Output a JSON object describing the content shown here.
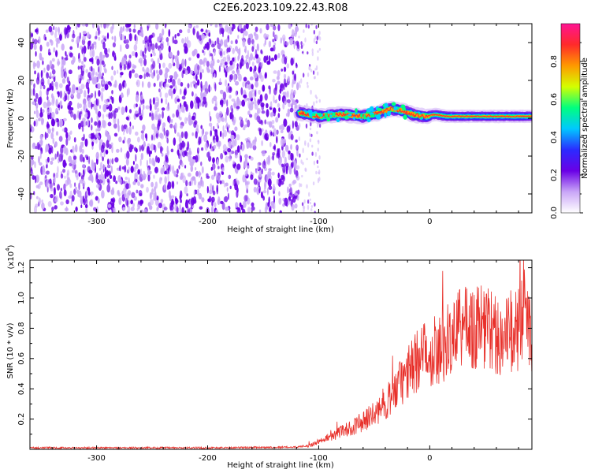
{
  "title": "C2E6.2023.109.22.43.R08",
  "colors": {
    "snr_line": "#e8302a",
    "spectro_dots": "#6a00e6",
    "axis": "#000000",
    "colormap": [
      "#ffffff",
      "#c9a6f7",
      "#6a00e6",
      "#2b2bff",
      "#00c8ff",
      "#00ff7f",
      "#d4ff00",
      "#ff9900",
      "#ff2a2a",
      "#ff1493"
    ]
  },
  "chart_data": [
    {
      "type": "heatmap",
      "name": "spectrogram",
      "title": "",
      "xlabel": "Height of straight line (km)",
      "ylabel": "Frequency (Hz)",
      "xlim": [
        -360,
        92
      ],
      "ylim": [
        -50,
        50
      ],
      "x_ticks": [
        -300,
        -200,
        -100,
        0
      ],
      "x_tick_labels": [
        "-300",
        "-200",
        "-100",
        "0"
      ],
      "y_ticks": [
        -40,
        -20,
        0,
        20,
        40
      ],
      "y_tick_labels": [
        "-40",
        "-20",
        "0",
        "20",
        "40"
      ],
      "noise_region_x": [
        -360,
        -118
      ],
      "gap_region_x": [
        -118,
        -98
      ],
      "signal_ridge": {
        "x": [
          -118,
          -100,
          -80,
          -60,
          -45,
          -35,
          -25,
          -15,
          -5,
          5,
          15,
          30,
          60,
          92
        ],
        "y": [
          3,
          1,
          2,
          1,
          3,
          5,
          4,
          2,
          1,
          2,
          1,
          1,
          1,
          1
        ]
      }
    },
    {
      "type": "colorbar",
      "name": "amplitude-colorbar",
      "label": "Normalized spectral amplitude",
      "range": [
        0,
        1
      ],
      "ticks": [
        0.0,
        0.2,
        0.4,
        0.6,
        0.8
      ],
      "tick_labels": [
        "0.0",
        "0.2",
        "0.4",
        "0.6",
        "0.8"
      ]
    },
    {
      "type": "line",
      "name": "snr",
      "title": "",
      "xlabel": "Height of straight line (km)",
      "ylabel": "SNR (10 * v/v)",
      "y_multiplier_base": "(x10",
      "y_multiplier_exp": "4",
      "y_multiplier_close": ")",
      "xlim": [
        -360,
        92
      ],
      "ylim": [
        0,
        1.25
      ],
      "x_ticks": [
        -300,
        -200,
        -100,
        0
      ],
      "x_tick_labels": [
        "-300",
        "-200",
        "-100",
        "0"
      ],
      "y_ticks": [
        0.2,
        0.4,
        0.6,
        0.8,
        1.0,
        1.2
      ],
      "y_tick_labels": [
        "0.2",
        "0.4",
        "0.6",
        "0.8",
        "1.0",
        "1.2"
      ],
      "series": [
        {
          "name": "SNR",
          "x": [
            -360,
            -300,
            -200,
            -120,
            -105,
            -100,
            -90,
            -80,
            -70,
            -60,
            -50,
            -40,
            -30,
            -20,
            -10,
            0,
            10,
            20,
            30,
            40,
            50,
            60,
            70,
            80,
            85,
            92
          ],
          "y": [
            0.01,
            0.01,
            0.01,
            0.015,
            0.03,
            0.05,
            0.08,
            0.11,
            0.14,
            0.18,
            0.22,
            0.3,
            0.38,
            0.48,
            0.58,
            0.62,
            0.66,
            0.72,
            0.78,
            0.8,
            0.78,
            0.74,
            0.72,
            0.78,
            0.92,
            0.7
          ]
        }
      ]
    }
  ]
}
